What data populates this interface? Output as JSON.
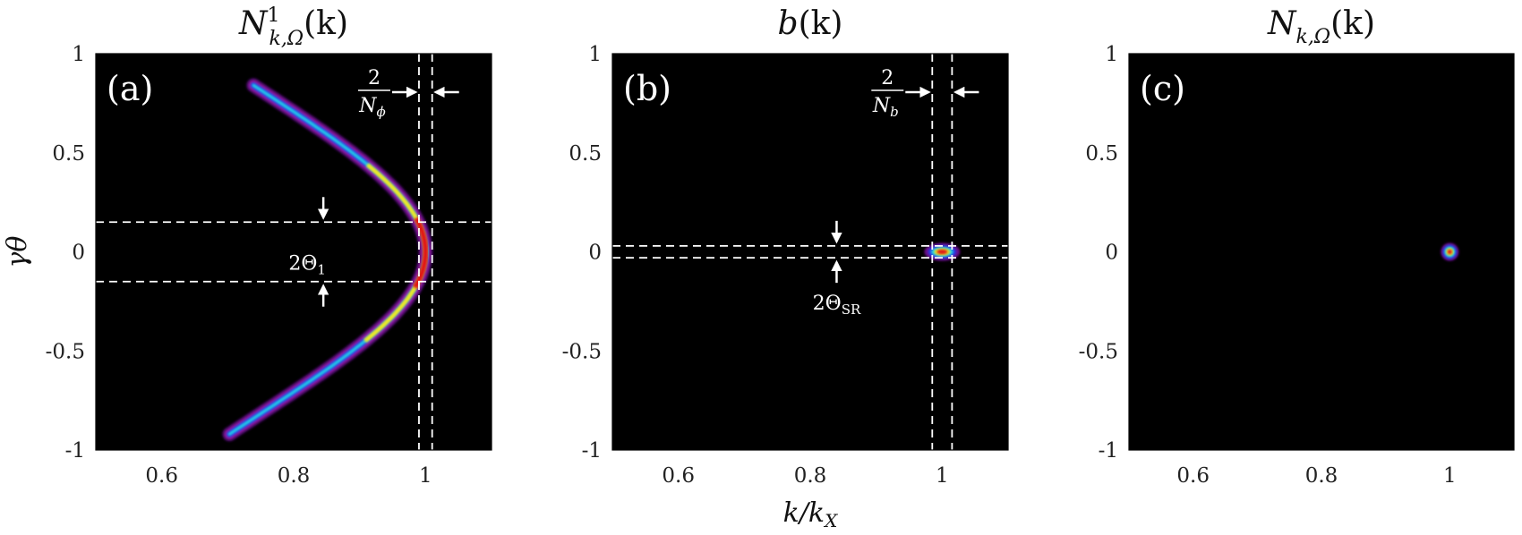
{
  "chart_data": [
    {
      "type": "heatmap",
      "panel_label": "(a)",
      "title": {
        "base": "N",
        "sup": "1",
        "sub": "k,Ω",
        "arg": "(k)"
      },
      "xlabel": "",
      "ylabel": "γθ",
      "xlim": [
        0.5,
        1.1
      ],
      "ylim": [
        -1,
        1
      ],
      "xticks": [
        0.6,
        0.8,
        1
      ],
      "yticks": [
        1,
        0.5,
        0,
        -0.5,
        -1
      ],
      "xtick_labels": [
        "0.6",
        "0.8",
        "1"
      ],
      "ytick_labels": [
        "1",
        "0.5",
        "0",
        "-0.5",
        "-1"
      ],
      "feature": "parabola",
      "feature_desc": "k/kX = 1/(1+(γθ)^2/2)",
      "theta_range": [
        -0.92,
        0.84
      ],
      "vlines": [
        0.99,
        1.01
      ],
      "hlines": [
        0.15,
        -0.15
      ],
      "vertical_annotation": {
        "num": "2",
        "den_base": "N",
        "den_sub": "ϕ"
      },
      "horizontal_annotation": {
        "base": "2Θ",
        "sub": "1"
      }
    },
    {
      "type": "heatmap",
      "panel_label": "(b)",
      "title": {
        "base": "b",
        "arg": "(k)"
      },
      "xlabel": "k/kX",
      "ylabel": "",
      "xlim": [
        0.5,
        1.1
      ],
      "ylim": [
        -1,
        1
      ],
      "xticks": [
        0.6,
        0.8,
        1
      ],
      "yticks": [
        1,
        0.5,
        0,
        -0.5,
        -1
      ],
      "xtick_labels": [
        "0.6",
        "0.8",
        "1"
      ],
      "ytick_labels": [
        "1",
        "0.5",
        "0",
        "-0.5",
        "-1"
      ],
      "feature": "spot",
      "spot_center": [
        1.0,
        0.0
      ],
      "vlines": [
        0.985,
        1.015
      ],
      "hlines": [
        0.03,
        -0.03
      ],
      "vertical_annotation": {
        "num": "2",
        "den_base": "N",
        "den_sub": "b"
      },
      "horizontal_annotation": {
        "base": "2Θ",
        "sub": "SR"
      }
    },
    {
      "type": "heatmap",
      "panel_label": "(c)",
      "title": {
        "base": "N",
        "sub": "k,Ω",
        "arg": "(k)"
      },
      "xlabel": "",
      "ylabel": "",
      "xlim": [
        0.5,
        1.1
      ],
      "ylim": [
        -1,
        1
      ],
      "xticks": [
        0.6,
        0.8,
        1
      ],
      "yticks": [
        1,
        0.5,
        0,
        -0.5,
        -1
      ],
      "xtick_labels": [
        "0.6",
        "0.8",
        "1"
      ],
      "ytick_labels": [
        "1",
        "0.5",
        "0",
        "-0.5",
        "-1"
      ],
      "feature": "dot",
      "spot_center": [
        1.0,
        0.0
      ]
    }
  ]
}
